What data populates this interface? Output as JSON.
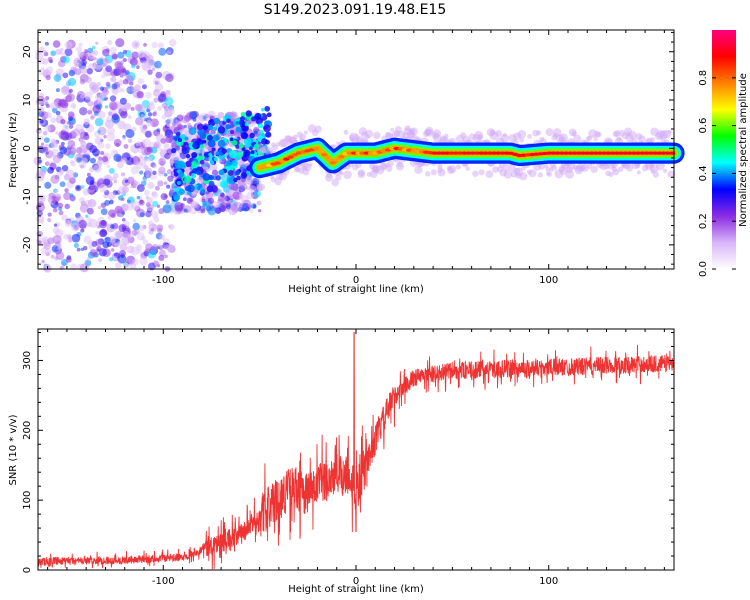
{
  "title": "S149.2023.091.19.48.E15",
  "chart_data": [
    {
      "type": "heatmap",
      "xlabel": "Height of straight line (km)",
      "ylabel": "Frequency (Hz)",
      "xlim": [
        -165,
        165
      ],
      "ylim": [
        -25,
        24.5
      ],
      "xticks": [
        -100,
        0,
        100
      ],
      "yticks": [
        -20,
        -10,
        0,
        10,
        20
      ],
      "grid": false,
      "colorbar": {
        "label": "Normalized spectral amplitude",
        "range": [
          0,
          1
        ],
        "ticks": [
          0.0,
          0.2,
          0.4,
          0.6,
          0.8
        ],
        "tick_labels": [
          "0.0",
          "0.2",
          "0.4",
          "0.6",
          "0.8"
        ],
        "colormap": [
          "#ffffff",
          "#d8b4f8",
          "#8a2be2",
          "#0000ff",
          "#00ffff",
          "#00ff00",
          "#ffff00",
          "#ff8000",
          "#ff0000",
          "#ff007f"
        ]
      },
      "ridge": {
        "description_points": [
          {
            "x": -50,
            "y": -4
          },
          {
            "x": -40,
            "y": -3
          },
          {
            "x": -30,
            "y": -1
          },
          {
            "x": -20,
            "y": 0
          },
          {
            "x": -12,
            "y": -3
          },
          {
            "x": -5,
            "y": -1
          },
          {
            "x": 10,
            "y": -1
          },
          {
            "x": 20,
            "y": 0
          },
          {
            "x": 40,
            "y": -1
          },
          {
            "x": 80,
            "y": -1
          },
          {
            "x": 85,
            "y": -1.5
          },
          {
            "x": 100,
            "y": -1
          },
          {
            "x": 165,
            "y": -1
          }
        ]
      }
    },
    {
      "type": "line",
      "xlabel": "Height of straight line (km)",
      "ylabel": "SNR (10 * v/v)",
      "xlim": [
        -165,
        165
      ],
      "ylim": [
        0,
        345
      ],
      "xticks": [
        -100,
        0,
        100
      ],
      "yticks": [
        0,
        100,
        200,
        300
      ],
      "grid": false,
      "color": "#ee3333",
      "trend": [
        {
          "x": -165,
          "y": 12
        },
        {
          "x": -120,
          "y": 14
        },
        {
          "x": -90,
          "y": 18
        },
        {
          "x": -75,
          "y": 35
        },
        {
          "x": -60,
          "y": 50
        },
        {
          "x": -45,
          "y": 90
        },
        {
          "x": -35,
          "y": 115
        },
        {
          "x": -25,
          "y": 110
        },
        {
          "x": -15,
          "y": 130
        },
        {
          "x": -5,
          "y": 140
        },
        {
          "x": 0,
          "y": 110
        },
        {
          "x": 5,
          "y": 150
        },
        {
          "x": 12,
          "y": 200
        },
        {
          "x": 20,
          "y": 250
        },
        {
          "x": 30,
          "y": 275
        },
        {
          "x": 50,
          "y": 285
        },
        {
          "x": 80,
          "y": 288
        },
        {
          "x": 120,
          "y": 292
        },
        {
          "x": 165,
          "y": 296
        }
      ],
      "spikes": [
        {
          "x": -1,
          "y": 340
        },
        {
          "x": 0,
          "y": 55
        }
      ]
    }
  ]
}
